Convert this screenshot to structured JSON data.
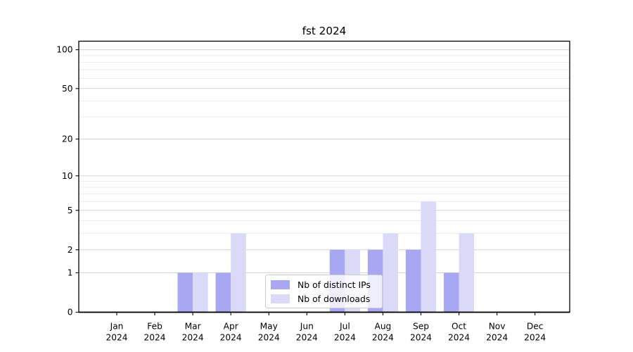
{
  "chart_data": {
    "type": "bar",
    "title": "fst 2024",
    "categories": [
      "Jan",
      "Feb",
      "Mar",
      "Apr",
      "May",
      "Jun",
      "Jul",
      "Aug",
      "Sep",
      "Oct",
      "Nov",
      "Dec"
    ],
    "x_tick_year": "2024",
    "series": [
      {
        "name": "Nb of distinct IPs",
        "color": "#a8a8f2",
        "values": [
          0,
          0,
          1,
          1,
          0,
          0,
          2,
          2,
          2,
          1,
          0,
          0
        ]
      },
      {
        "name": "Nb of downloads",
        "color": "#dadaf8",
        "values": [
          0,
          0,
          1,
          3,
          0,
          0,
          2,
          3,
          6,
          3,
          0,
          0
        ]
      }
    ],
    "y_axis": {
      "scale": "log1p",
      "ticks": [
        0,
        1,
        2,
        5,
        10,
        20,
        50,
        100
      ],
      "minor_gridlines": [
        3,
        4,
        6,
        7,
        8,
        9,
        30,
        40,
        60,
        70,
        80,
        90
      ],
      "ylim": [
        0,
        117
      ]
    },
    "xlabel": "",
    "ylabel": "",
    "grid": true,
    "legend_location": "lower center inside plot"
  },
  "style": {
    "background": "#ffffff",
    "axis_color": "#000000",
    "text_color": "#000000",
    "major_grid_color": "#d3d3d3",
    "minor_grid_color": "#ececec",
    "legend_border_color": "#cccccc"
  }
}
